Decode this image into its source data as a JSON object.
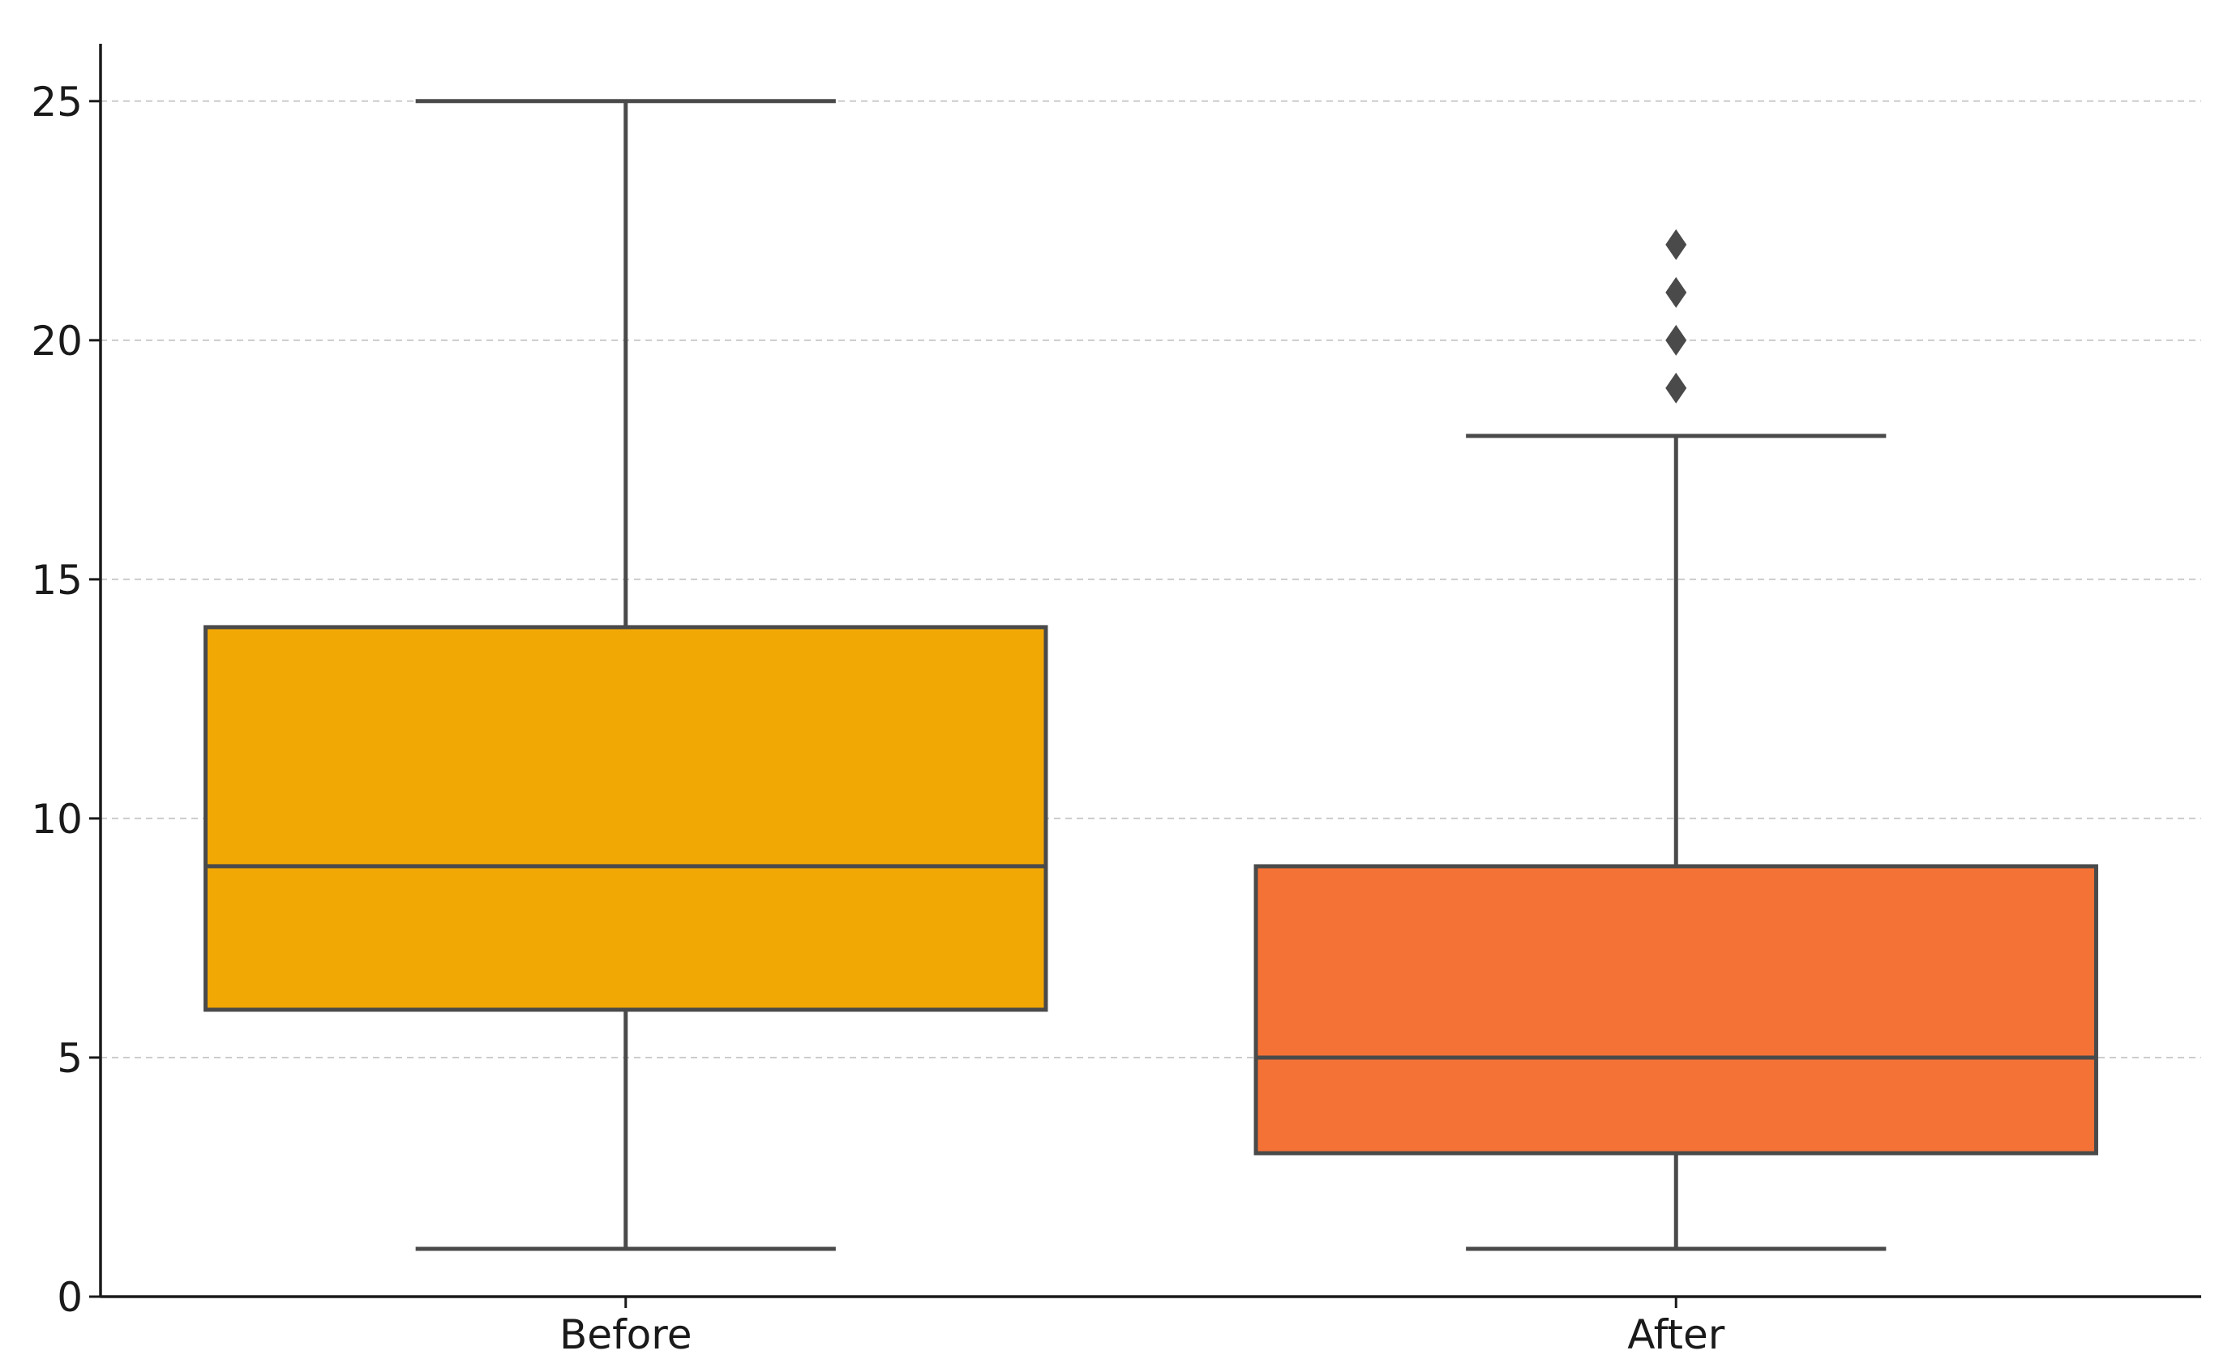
{
  "chart_data": {
    "type": "box",
    "title": "",
    "xlabel": "",
    "ylabel": "",
    "categories": [
      "Before",
      "After"
    ],
    "ylim": [
      0,
      26.2
    ],
    "yticks": [
      0,
      5,
      10,
      15,
      20,
      25
    ],
    "ytick_labels": [
      "0",
      "5",
      "10",
      "15",
      "20",
      "25"
    ],
    "grid": "horizontal-dashed",
    "boxes": [
      {
        "category": "Before",
        "whisker_low": 1,
        "q1": 6,
        "median": 9,
        "q3": 14,
        "whisker_high": 25,
        "outliers": [],
        "color": "#f2a804"
      },
      {
        "category": "After",
        "whisker_low": 1,
        "q1": 3,
        "median": 5,
        "q3": 9,
        "whisker_high": 18,
        "outliers": [
          19,
          20,
          21,
          22
        ],
        "color": "#f57236"
      }
    ],
    "colors": {
      "edge": "#4a4a4a",
      "grid": "#cccccc",
      "axis": "#1a1a1a"
    }
  }
}
